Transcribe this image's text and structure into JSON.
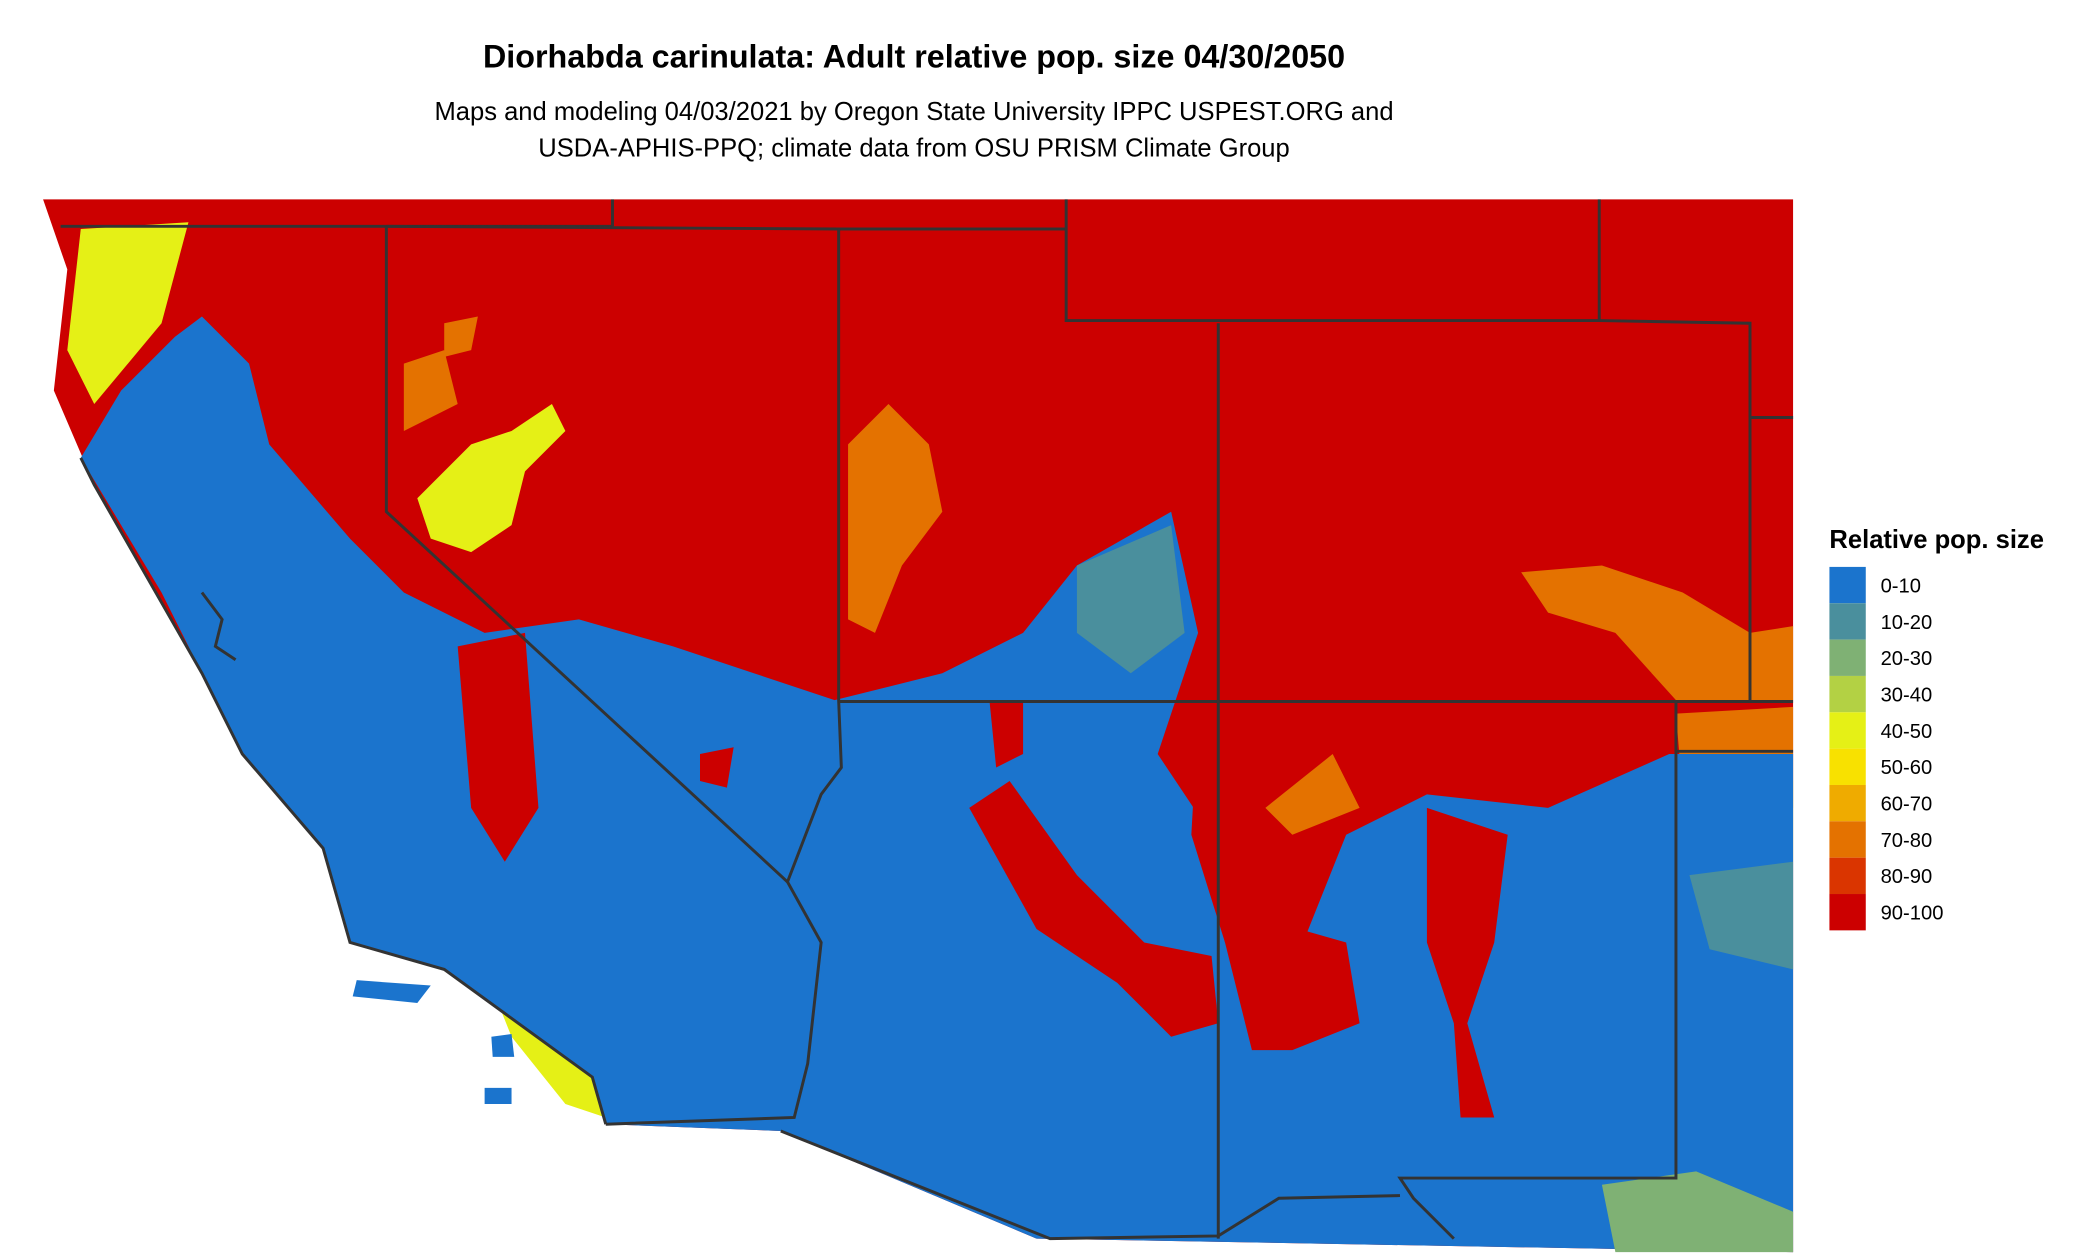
{
  "title": "Diorhabda carinulata: Adult relative pop. size 04/30/2050",
  "subtitle_line1": "Maps and modeling 04/03/2021 by Oregon State University IPPC USPEST.ORG and",
  "subtitle_line2": "USDA-APHIS-PPQ; climate data from OSU PRISM Climate Group",
  "legend": {
    "title": "Relative pop. size",
    "items": [
      {
        "label": "0-10",
        "color": "#1b74cd"
      },
      {
        "label": "10-20",
        "color": "#4a8f9d"
      },
      {
        "label": "20-30",
        "color": "#7fb174"
      },
      {
        "label": "30-40",
        "color": "#b3d144"
      },
      {
        "label": "40-50",
        "color": "#e5f016"
      },
      {
        "label": "50-60",
        "color": "#f8e100"
      },
      {
        "label": "60-70",
        "color": "#efab00"
      },
      {
        "label": "70-80",
        "color": "#e47200"
      },
      {
        "label": "80-90",
        "color": "#da3500"
      },
      {
        "label": "90-100",
        "color": "#cc0000"
      }
    ]
  },
  "border_color": "#333333"
}
